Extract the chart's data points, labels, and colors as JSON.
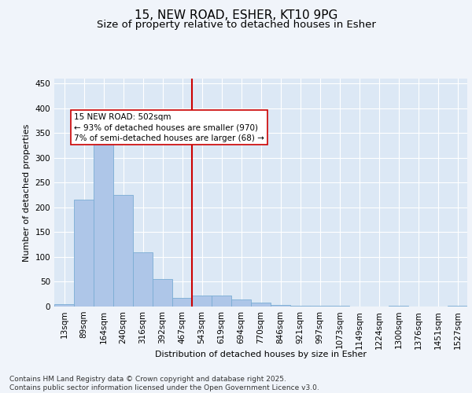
{
  "title_line1": "15, NEW ROAD, ESHER, KT10 9PG",
  "title_line2": "Size of property relative to detached houses in Esher",
  "xlabel": "Distribution of detached houses by size in Esher",
  "ylabel": "Number of detached properties",
  "bar_labels": [
    "13sqm",
    "89sqm",
    "164sqm",
    "240sqm",
    "316sqm",
    "392sqm",
    "467sqm",
    "543sqm",
    "619sqm",
    "694sqm",
    "770sqm",
    "846sqm",
    "921sqm",
    "997sqm",
    "1073sqm",
    "1149sqm",
    "1224sqm",
    "1300sqm",
    "1376sqm",
    "1451sqm",
    "1527sqm"
  ],
  "bar_values": [
    5,
    215,
    340,
    225,
    110,
    55,
    18,
    22,
    22,
    15,
    8,
    3,
    2,
    1,
    1,
    0,
    0,
    1,
    0,
    0,
    1
  ],
  "bar_color": "#aec6e8",
  "bar_edgecolor": "#7aadd4",
  "figure_facecolor": "#f0f4fa",
  "axes_facecolor": "#dce8f5",
  "grid_color": "#ffffff",
  "vline_x": 6.5,
  "vline_color": "#cc0000",
  "annotation_text": "15 NEW ROAD: 502sqm\n← 93% of detached houses are smaller (970)\n7% of semi-detached houses are larger (68) →",
  "annotation_box_edgecolor": "#cc0000",
  "annotation_box_facecolor": "#ffffff",
  "ylim": [
    0,
    460
  ],
  "yticks": [
    0,
    50,
    100,
    150,
    200,
    250,
    300,
    350,
    400,
    450
  ],
  "footnote": "Contains HM Land Registry data © Crown copyright and database right 2025.\nContains public sector information licensed under the Open Government Licence v3.0.",
  "title_fontsize": 11,
  "subtitle_fontsize": 9.5,
  "axis_label_fontsize": 8,
  "tick_fontsize": 7.5,
  "annotation_fontsize": 7.5,
  "footnote_fontsize": 6.5
}
